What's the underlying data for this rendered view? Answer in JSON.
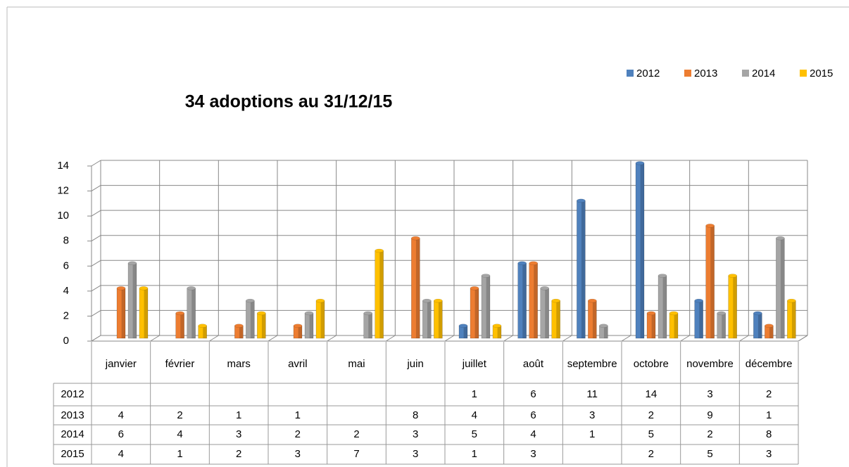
{
  "chart_data": {
    "type": "bar",
    "title": "34 adoptions au 31/12/15",
    "categories": [
      "janvier",
      "février",
      "mars",
      "avril",
      "mai",
      "juin",
      "juillet",
      "août",
      "septembre",
      "octobre",
      "novembre",
      "décembre"
    ],
    "series": [
      {
        "name": "2012",
        "color": "#4f81bd",
        "values": [
          null,
          null,
          null,
          null,
          null,
          null,
          1,
          6,
          11,
          14,
          3,
          2
        ]
      },
      {
        "name": "2013",
        "color": "#ed7d31",
        "values": [
          4,
          2,
          1,
          1,
          null,
          8,
          4,
          6,
          3,
          2,
          9,
          1
        ]
      },
      {
        "name": "2014",
        "color": "#a5a5a5",
        "values": [
          6,
          4,
          3,
          2,
          2,
          3,
          5,
          4,
          1,
          5,
          2,
          8
        ]
      },
      {
        "name": "2015",
        "color": "#ffc000",
        "values": [
          4,
          1,
          2,
          3,
          7,
          3,
          1,
          3,
          null,
          2,
          5,
          3
        ]
      }
    ],
    "ylim": [
      0,
      14
    ],
    "yticks": [
      0,
      2,
      4,
      6,
      8,
      10,
      12,
      14
    ],
    "grid": true,
    "legend": "top-right"
  }
}
